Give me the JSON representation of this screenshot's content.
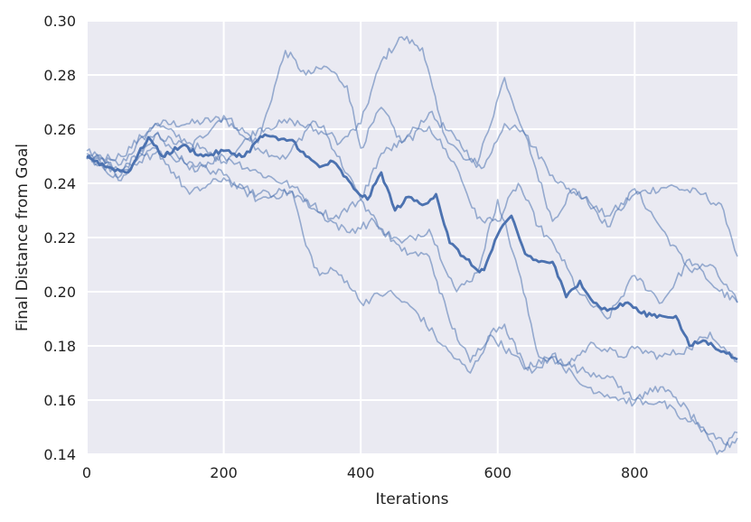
{
  "chart_data": {
    "type": "line",
    "title": "",
    "xlabel": "Iterations",
    "ylabel": "Final Distance from Goal",
    "xlim": [
      0,
      950
    ],
    "ylim": [
      0.14,
      0.3
    ],
    "xticks": [
      0,
      200,
      400,
      600,
      800
    ],
    "xtick_labels": [
      "0",
      "200",
      "400",
      "600",
      "800"
    ],
    "yticks": [
      0.14,
      0.16,
      0.18,
      0.2,
      0.22,
      0.24,
      0.26,
      0.28,
      0.3
    ],
    "ytick_labels": [
      "0.14",
      "0.16",
      "0.18",
      "0.20",
      "0.22",
      "0.24",
      "0.26",
      "0.28",
      "0.30"
    ],
    "grid": true,
    "legend": "none",
    "colors": {
      "background": "#eaeaf2",
      "grid": "#ffffff",
      "line": "#4c72b0"
    },
    "series": [
      {
        "emphasis": false,
        "x": [
          0,
          50,
          100,
          150,
          200,
          250,
          290,
          330,
          370,
          400,
          430,
          460,
          490,
          520,
          550,
          580,
          610,
          640,
          680,
          710,
          740,
          760,
          800,
          850,
          900,
          930,
          950
        ],
        "y": [
          0.25,
          0.247,
          0.262,
          0.262,
          0.264,
          0.253,
          0.249,
          0.263,
          0.255,
          0.262,
          0.285,
          0.294,
          0.29,
          0.259,
          0.249,
          0.246,
          0.262,
          0.258,
          0.226,
          0.238,
          0.231,
          0.228,
          0.236,
          0.239,
          0.236,
          0.23,
          0.213
        ]
      },
      {
        "emphasis": false,
        "x": [
          0,
          50,
          100,
          150,
          200,
          250,
          290,
          320,
          350,
          380,
          400,
          430,
          460,
          500,
          540,
          570,
          610,
          640,
          680,
          700,
          730,
          760,
          800,
          840,
          880,
          910,
          950
        ],
        "y": [
          0.252,
          0.244,
          0.258,
          0.253,
          0.265,
          0.255,
          0.289,
          0.28,
          0.283,
          0.276,
          0.253,
          0.268,
          0.255,
          0.266,
          0.256,
          0.247,
          0.279,
          0.258,
          0.243,
          0.238,
          0.235,
          0.224,
          0.238,
          0.223,
          0.208,
          0.21,
          0.196
        ]
      },
      {
        "emphasis": false,
        "x": [
          0,
          50,
          100,
          150,
          200,
          250,
          300,
          350,
          400,
          430,
          460,
          500,
          540,
          570,
          600,
          630,
          660,
          690,
          720,
          760,
          800,
          840,
          880,
          920,
          950
        ],
        "y": [
          0.249,
          0.25,
          0.262,
          0.255,
          0.248,
          0.26,
          0.263,
          0.258,
          0.234,
          0.251,
          0.255,
          0.261,
          0.246,
          0.227,
          0.226,
          0.24,
          0.224,
          0.214,
          0.199,
          0.19,
          0.206,
          0.196,
          0.212,
          0.201,
          0.196
        ]
      },
      {
        "emphasis": false,
        "x": [
          0,
          50,
          100,
          150,
          200,
          250,
          300,
          330,
          360,
          400,
          430,
          460,
          500,
          540,
          570,
          600,
          630,
          660,
          700,
          740,
          780,
          800,
          840,
          880,
          910,
          950
        ],
        "y": [
          0.251,
          0.241,
          0.258,
          0.245,
          0.25,
          0.244,
          0.239,
          0.232,
          0.227,
          0.234,
          0.223,
          0.218,
          0.223,
          0.2,
          0.207,
          0.234,
          0.208,
          0.176,
          0.173,
          0.181,
          0.176,
          0.179,
          0.176,
          0.179,
          0.185,
          0.174
        ]
      },
      {
        "emphasis": false,
        "x": [
          0,
          50,
          100,
          150,
          200,
          250,
          300,
          320,
          340,
          360,
          380,
          400,
          440,
          480,
          520,
          560,
          590,
          620,
          650,
          680,
          720,
          760,
          800,
          840,
          870,
          900,
          930,
          950
        ],
        "y": [
          0.25,
          0.243,
          0.253,
          0.236,
          0.242,
          0.234,
          0.237,
          0.217,
          0.206,
          0.208,
          0.204,
          0.196,
          0.2,
          0.193,
          0.18,
          0.17,
          0.184,
          0.177,
          0.17,
          0.176,
          0.171,
          0.169,
          0.16,
          0.159,
          0.153,
          0.15,
          0.144,
          0.148
        ]
      },
      {
        "emphasis": false,
        "x": [
          0,
          50,
          100,
          150,
          200,
          250,
          300,
          340,
          380,
          420,
          460,
          500,
          530,
          560,
          590,
          610,
          640,
          680,
          720,
          760,
          800,
          830,
          860,
          890,
          920,
          950
        ],
        "y": [
          0.249,
          0.245,
          0.251,
          0.248,
          0.243,
          0.236,
          0.237,
          0.229,
          0.222,
          0.226,
          0.215,
          0.213,
          0.189,
          0.174,
          0.185,
          0.188,
          0.172,
          0.177,
          0.166,
          0.162,
          0.159,
          0.165,
          0.161,
          0.152,
          0.14,
          0.146
        ]
      },
      {
        "emphasis": true,
        "x": [
          0,
          30,
          60,
          90,
          110,
          140,
          170,
          200,
          230,
          250,
          260,
          280,
          300,
          320,
          340,
          360,
          390,
          410,
          430,
          450,
          470,
          490,
          510,
          530,
          550,
          570,
          580,
          600,
          620,
          640,
          660,
          680,
          700,
          720,
          740,
          760,
          790,
          810,
          840,
          860,
          880,
          900,
          930,
          950
        ],
        "y": [
          0.25,
          0.246,
          0.244,
          0.257,
          0.25,
          0.254,
          0.25,
          0.252,
          0.25,
          0.256,
          0.258,
          0.256,
          0.256,
          0.25,
          0.246,
          0.248,
          0.238,
          0.234,
          0.244,
          0.23,
          0.235,
          0.232,
          0.236,
          0.218,
          0.213,
          0.208,
          0.208,
          0.221,
          0.228,
          0.214,
          0.211,
          0.211,
          0.198,
          0.204,
          0.196,
          0.193,
          0.196,
          0.192,
          0.191,
          0.191,
          0.18,
          0.182,
          0.178,
          0.175
        ]
      }
    ]
  }
}
